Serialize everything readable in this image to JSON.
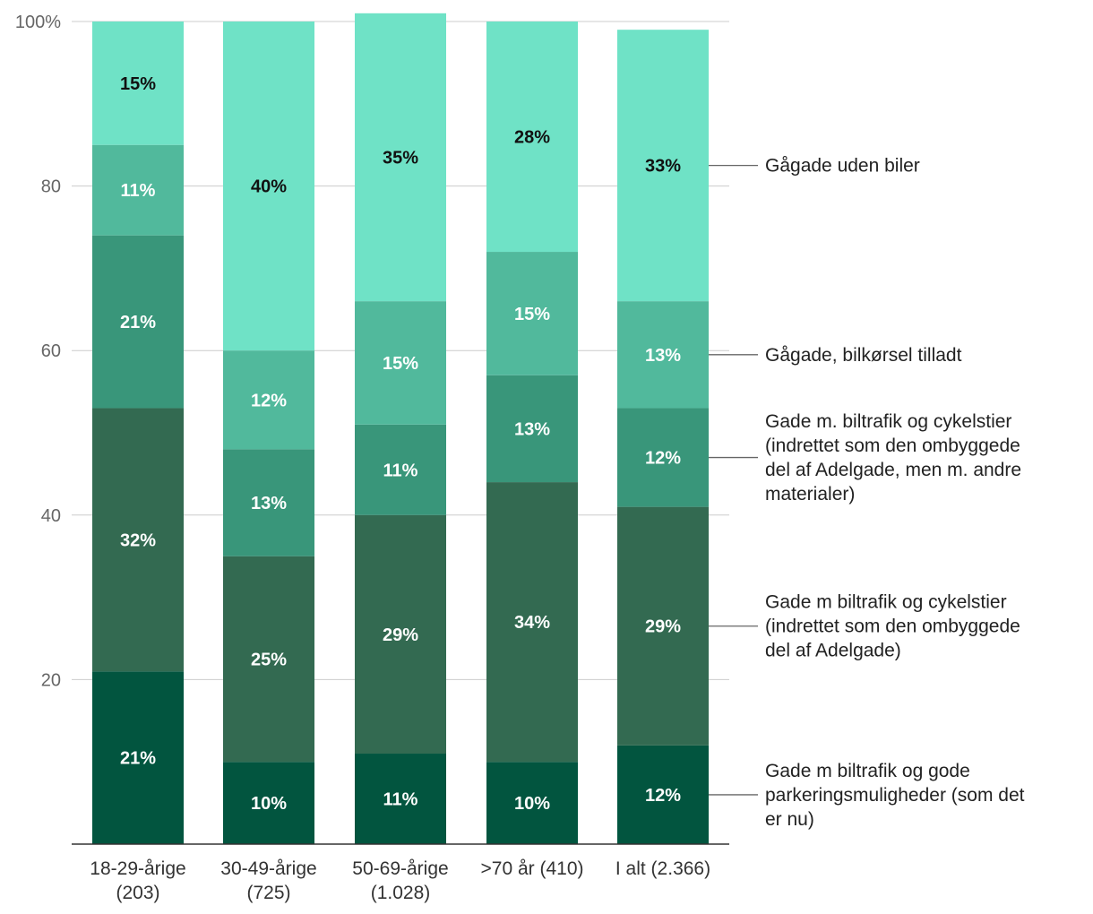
{
  "chart_data": {
    "type": "bar",
    "stacked": true,
    "title": "",
    "xlabel": "",
    "ylabel": "",
    "ylim": [
      0,
      100
    ],
    "yticks": [
      20,
      40,
      60,
      80,
      100
    ],
    "ytick_labels": [
      "20",
      "40",
      "60",
      "80",
      "100%"
    ],
    "grid": true,
    "legend_position": "right",
    "categories": [
      [
        "18-29-årige",
        "(203)"
      ],
      [
        "30-49-årige",
        "(725)"
      ],
      [
        "50-69-årige",
        "(1.028)"
      ],
      [
        ">70 år (410)"
      ],
      [
        "I alt (2.366)"
      ]
    ],
    "series": [
      {
        "name": [
          "Gade m biltrafik og gode",
          "parkeringsmuligheder (som det",
          "er nu)"
        ],
        "color": "#02553f",
        "label_color": "#ffffff",
        "values": [
          21,
          10,
          11,
          10,
          12
        ],
        "labels": [
          "21%",
          "10%",
          "11%",
          "10%",
          "12%"
        ]
      },
      {
        "name": [
          "Gade m biltrafik og cykelstier",
          "(indrettet som den ombyggede",
          "del af Adelgade)"
        ],
        "color": "#336a51",
        "label_color": "#ffffff",
        "values": [
          32,
          25,
          29,
          34,
          29
        ],
        "labels": [
          "32%",
          "25%",
          "29%",
          "34%",
          "29%"
        ]
      },
      {
        "name": [
          "Gade m. biltrafik og cykelstier",
          "(indrettet som den ombyggede",
          "del af Adelgade, men m. andre",
          "materialer)"
        ],
        "color": "#39967a",
        "label_color": "#ffffff",
        "values": [
          21,
          13,
          11,
          13,
          12
        ],
        "labels": [
          "21%",
          "13%",
          "11%",
          "13%",
          "12%"
        ]
      },
      {
        "name": [
          "Gågade, bilkørsel tilladt"
        ],
        "color": "#51b99c",
        "label_color": "#ffffff",
        "values": [
          11,
          12,
          15,
          15,
          13
        ],
        "labels": [
          "11%",
          "12%",
          "15%",
          "15%",
          "13%"
        ]
      },
      {
        "name": [
          "Gågade uden biler"
        ],
        "color": "#6fe2c6",
        "label_color": "#111111",
        "values": [
          15,
          40,
          35,
          28,
          33
        ],
        "labels": [
          "15%",
          "40%",
          "35%",
          "28%",
          "33%"
        ]
      }
    ]
  }
}
